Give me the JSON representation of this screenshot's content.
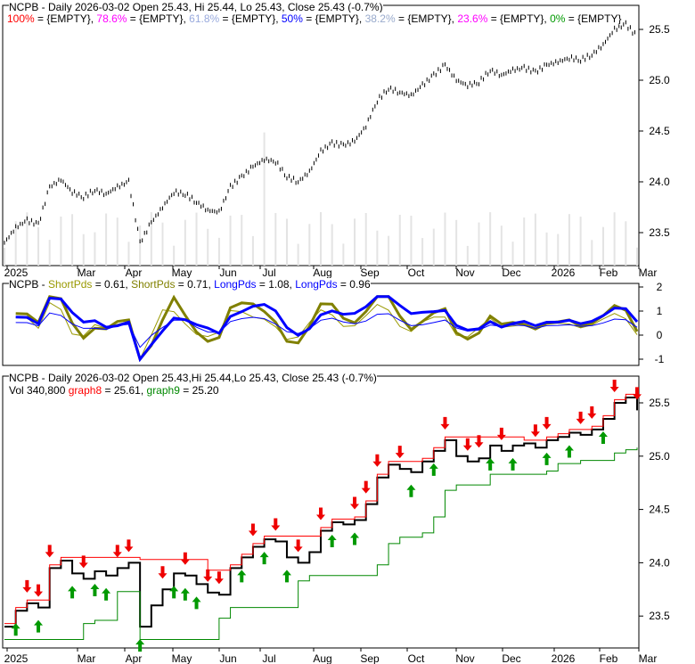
{
  "chart_data": [
    {
      "type": "ohlc",
      "title": "NCPB - Daily 2026-03-02 Open 25.43, Hi 25.44, Lo 25.43, Close 25.43 (-0.7%)",
      "fib_legend": [
        {
          "label": "100%",
          "value": "{EMPTY}",
          "color": "#ff0000"
        },
        {
          "label": "78.6%",
          "value": "{EMPTY}",
          "color": "#ff00ff"
        },
        {
          "label": "61.8%",
          "value": "{EMPTY}",
          "color": "#99aadd"
        },
        {
          "label": "50%",
          "value": "{EMPTY}",
          "color": "#0000ff"
        },
        {
          "label": "38.2%",
          "value": "{EMPTY}",
          "color": "#99aacc"
        },
        {
          "label": "23.6%",
          "value": "{EMPTY}",
          "color": "#ff00ff"
        },
        {
          "label": "0%",
          "value": "{EMPTY}",
          "color": "#009900"
        }
      ],
      "yticks": [
        "25.5",
        "25.0",
        "24.5",
        "24.0",
        "23.5"
      ],
      "ylim": [
        23.3,
        25.65
      ]
    },
    {
      "type": "line",
      "title": "NCPB - ",
      "series": [
        {
          "name": "ShortPds",
          "value": "0.61",
          "color": "#999900"
        },
        {
          "name": "ShortPds",
          "value": "0.71",
          "color": "#808000"
        },
        {
          "name": "LongPds",
          "value": "1.08",
          "color": "#0000ff"
        },
        {
          "name": "LongPds",
          "value": "0.96",
          "color": "#0000ff"
        }
      ],
      "yticks": [
        "2",
        "1",
        "0",
        "-1"
      ],
      "ylim": [
        -1.2,
        2.2
      ]
    },
    {
      "type": "line",
      "title": "NCPB - Daily 2026-03-02 Open 25.43,Hi 25.44,Lo 25.43, Close 25.43 (-0.7%)",
      "vol": "Vol 340,800",
      "graph8": {
        "name": "graph8",
        "value": "25.61",
        "color": "#ff0000"
      },
      "graph9": {
        "name": "graph9",
        "value": "25.20",
        "color": "#008800"
      },
      "yticks": [
        "25.5",
        "25.0",
        "24.5",
        "24.0",
        "23.5"
      ],
      "down_arrows": [
        2,
        3,
        4,
        7,
        10,
        11,
        14,
        16,
        18,
        19,
        22,
        24,
        26,
        28,
        31,
        32,
        33,
        35,
        39,
        41,
        42,
        44,
        47,
        48,
        51,
        52,
        54,
        56,
        58,
        59,
        60
      ],
      "up_arrows": [
        1,
        3,
        6,
        8,
        9,
        12,
        15,
        16,
        17,
        21,
        23,
        25,
        29,
        31,
        36,
        38,
        43,
        45,
        48,
        50,
        53,
        57
      ]
    }
  ],
  "xticks": [
    "2025",
    "Mar",
    "Apr",
    "May",
    "Jun",
    "Jul",
    "Aug",
    "Sep",
    "Oct",
    "Nov",
    "Dec",
    "2026",
    "Feb",
    "Mar"
  ],
  "weekly_close": [
    23.4,
    23.55,
    23.62,
    23.58,
    23.95,
    24.02,
    23.9,
    23.85,
    23.92,
    23.88,
    23.95,
    24.0,
    23.4,
    23.6,
    23.75,
    23.9,
    23.88,
    23.8,
    23.72,
    23.7,
    23.95,
    24.05,
    24.15,
    24.22,
    24.2,
    24.05,
    24.0,
    24.1,
    24.3,
    24.38,
    24.36,
    24.4,
    24.55,
    24.8,
    24.92,
    24.88,
    24.85,
    24.95,
    25.05,
    25.15,
    25.0,
    24.95,
    24.98,
    25.1,
    25.05,
    25.1,
    25.12,
    25.08,
    25.15,
    25.18,
    25.22,
    25.2,
    25.25,
    25.35,
    25.5,
    25.55,
    25.43
  ]
}
